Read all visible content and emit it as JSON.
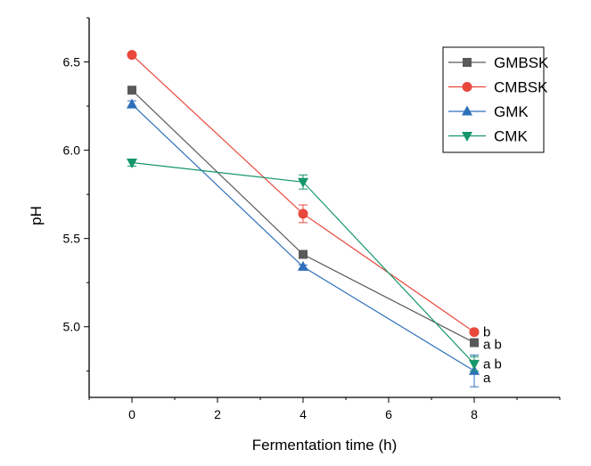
{
  "chart_data": {
    "type": "line",
    "title": "",
    "xlabel": "Fermentation time (h)",
    "ylabel": "pH",
    "xlim": [
      -1,
      10
    ],
    "ylim": [
      4.6,
      6.75
    ],
    "xticks": [
      0,
      2,
      4,
      6,
      8
    ],
    "yticks": [
      5.0,
      5.5,
      6.0,
      6.5
    ],
    "xtick_labels": [
      "0",
      "2",
      "4",
      "6",
      "8"
    ],
    "ytick_labels": [
      "5.0",
      "5.5",
      "6.0",
      "6.5"
    ],
    "grid": false,
    "legend_position": "top-right",
    "x": [
      0,
      4,
      8
    ],
    "series": [
      {
        "name": "GMBSK",
        "marker": "square",
        "color": "#595959",
        "values": [
          6.34,
          5.41,
          4.91
        ],
        "errors": [
          0.01,
          0.01,
          0.01
        ]
      },
      {
        "name": "CMBSK",
        "marker": "circle",
        "color": "#e8493c",
        "values": [
          6.54,
          5.64,
          4.97
        ],
        "errors": [
          0.01,
          0.05,
          0.01
        ]
      },
      {
        "name": "GMK",
        "marker": "triangle-up",
        "color": "#2e6fba",
        "values": [
          6.26,
          5.34,
          4.75
        ],
        "errors": [
          0.02,
          0.01,
          0.09
        ]
      },
      {
        "name": "CMK",
        "marker": "triangle-down",
        "color": "#16966b",
        "values": [
          5.93,
          5.82,
          4.79
        ],
        "errors": [
          0.02,
          0.04,
          0.04
        ]
      }
    ],
    "annotations": [
      {
        "text": "b",
        "x": 8,
        "y": 4.97
      },
      {
        "text": "a b",
        "x": 8,
        "y": 4.9
      },
      {
        "text": "a b",
        "x": 8,
        "y": 4.79
      },
      {
        "text": "a",
        "x": 8,
        "y": 4.71
      }
    ]
  }
}
